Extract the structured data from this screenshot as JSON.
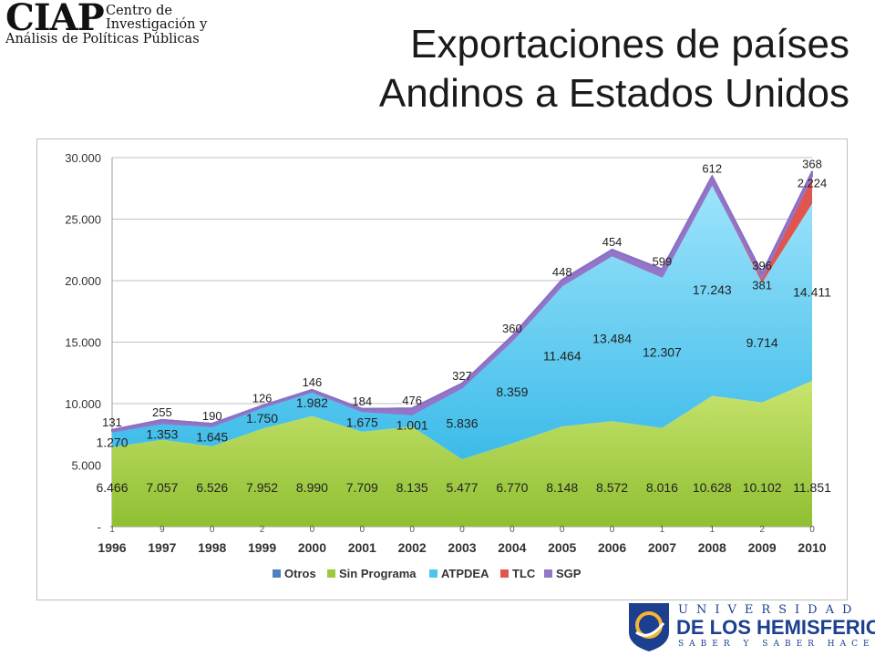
{
  "logo_ciap": {
    "word": "CIAP",
    "line1": "Centro de",
    "line2": "Investigación y",
    "line3": "Análisis de Políticas Públicas"
  },
  "title": {
    "line1": "Exportaciones de países",
    "line2": "Andinos a Estados Unidos"
  },
  "chart_data": {
    "type": "area",
    "stacked": true,
    "categories": [
      "1996",
      "1997",
      "1998",
      "1999",
      "2000",
      "2001",
      "2002",
      "2003",
      "2004",
      "2005",
      "2006",
      "2007",
      "2008",
      "2009",
      "2010"
    ],
    "ylim": [
      0,
      30000
    ],
    "yticks": [
      {
        "value": 0,
        "label": "-"
      },
      {
        "value": 5000,
        "label": "5.000"
      },
      {
        "value": 10000,
        "label": "10.000"
      },
      {
        "value": 15000,
        "label": "15.000"
      },
      {
        "value": 20000,
        "label": "20.000"
      },
      {
        "value": 25000,
        "label": "25.000"
      },
      {
        "value": 30000,
        "label": "30.000"
      }
    ],
    "grid": true,
    "legend_position": "bottom",
    "series": [
      {
        "name": "Sin Programa",
        "color": "#9bcb3c",
        "values": [
          6466,
          7057,
          6526,
          7952,
          8990,
          7709,
          8135,
          5477,
          6770,
          8148,
          8572,
          8016,
          10628,
          10102,
          11851
        ],
        "labels": [
          "6.466",
          "7.057",
          "6.526",
          "7.952",
          "8.990",
          "7.709",
          "8.135",
          "5.477",
          "6.770",
          "8.148",
          "8.572",
          "8.016",
          "10.628",
          "10.102",
          "11.851"
        ]
      },
      {
        "name": "ATPDEA",
        "color": "#4dc5ef",
        "values": [
          1270,
          1353,
          1645,
          1750,
          1982,
          1675,
          1001,
          5836,
          8359,
          11464,
          13484,
          12307,
          17243,
          9714,
          14411
        ],
        "labels": [
          "1.270",
          "1.353",
          "1.645",
          "1.750",
          "1.982",
          "1.675",
          "1.001",
          "5.836",
          "8.359",
          "11.464",
          "13.484",
          "12.307",
          "17.243",
          "9.714",
          "14.411"
        ]
      },
      {
        "name": "TLC",
        "color": "#e0564e",
        "values": [
          0,
          0,
          0,
          0,
          0,
          0,
          0,
          0,
          0,
          0,
          0,
          0,
          0,
          381,
          2224
        ],
        "labels": [
          "",
          "",
          "",
          "",
          "",
          "",
          "",
          "",
          "",
          "",
          "",
          "",
          "",
          "381",
          "2.224"
        ]
      },
      {
        "name": "SGP",
        "color": "#9575c8",
        "values": [
          131,
          255,
          190,
          126,
          146,
          184,
          476,
          327,
          360,
          448,
          454,
          599,
          612,
          396,
          368
        ],
        "labels": [
          "131",
          "255",
          "190",
          "126",
          "146",
          "184",
          "476",
          "327",
          "360",
          "448",
          "454",
          "599",
          "612",
          "396",
          "368"
        ]
      },
      {
        "name": "Otros",
        "color": "#4f81bd",
        "values": [
          1,
          9,
          0,
          2,
          0,
          0,
          0,
          0,
          0,
          0,
          0,
          1,
          1,
          2,
          0
        ],
        "labels": [
          "1",
          "9",
          "0",
          "2",
          "0",
          "0",
          "0",
          "0",
          "0",
          "0",
          "0",
          "1",
          "1",
          "2",
          "0"
        ]
      }
    ],
    "legend": [
      "Otros",
      "Sin Programa",
      "ATPDEA",
      "TLC",
      "SGP"
    ]
  },
  "university_logo": {
    "line1": "UNIVERSIDAD",
    "line2": "DE LOS HEMISFERIOS",
    "line3": "SABER Y SABER HACER"
  }
}
